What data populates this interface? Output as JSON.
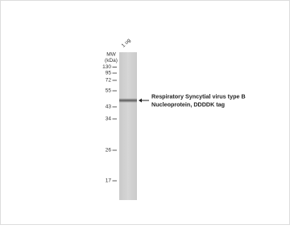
{
  "blot": {
    "lane_label": "1 ug",
    "mw_label": "MW",
    "unit_label": "(kDa)",
    "markers": [
      130,
      95,
      72,
      55,
      43,
      34,
      26,
      17
    ],
    "annotation": [
      "Respiratory Syncytial virus type B",
      "Nucleoprotein, DDDDK tag"
    ]
  }
}
